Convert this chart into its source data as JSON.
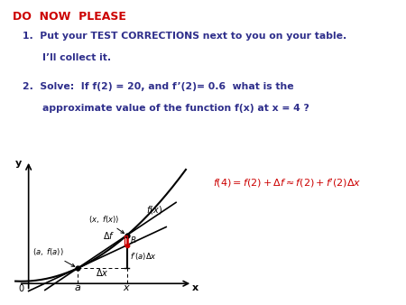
{
  "title": "DO  NOW  PLEASE",
  "title_color": "#cc0000",
  "item1_line1": "Put your TEST CORRECTIONS next to you on your table.",
  "item1_line2": "I’ll collect it.",
  "item2_line1": "Solve:  If f(2) = 20, and f’(2)= 0.6  what is the",
  "item2_line2": "approximate value of the function f(x) at x = 4 ?",
  "text_color": "#2e2e8b",
  "formula_color": "#cc0000",
  "bg_color": "#ffffff",
  "graph_xlim": [
    -0.5,
    5.2
  ],
  "graph_ylim": [
    -0.5,
    5.2
  ],
  "a": 1.5,
  "xa": 3.0,
  "curve_coeffs": [
    0.15,
    0.05,
    0.3
  ],
  "title_fontsize": 9,
  "text_fontsize": 7.8,
  "formula_fontsize": 8
}
